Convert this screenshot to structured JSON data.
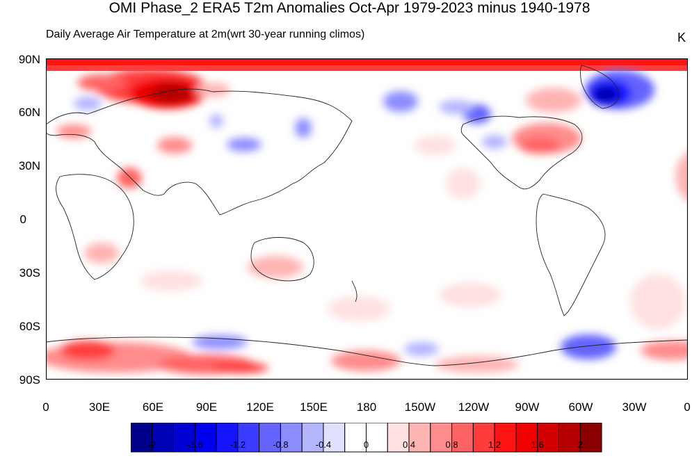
{
  "title": "OMI Phase_2 ERA5 T2m Anomalies Oct-Apr 1979-2023 minus 1940-1978",
  "subtitle": "Daily Average Air Temperature at 2m(wrt 30-year running climos)",
  "units": "K",
  "y_ticks": [
    "90N",
    "60N",
    "30N",
    "0",
    "30S",
    "60S",
    "90S"
  ],
  "x_ticks": [
    "0",
    "30E",
    "60E",
    "90E",
    "120E",
    "150E",
    "180",
    "150W",
    "120W",
    "90W",
    "60W",
    "30W",
    "0"
  ],
  "colorbar": {
    "colors": [
      "#00008a",
      "#0000b4",
      "#0000d2",
      "#0000f0",
      "#1414ff",
      "#3c3cff",
      "#6464ff",
      "#8c8cff",
      "#b4b4ff",
      "#e1e1ff",
      "#ffffff",
      "#ffffff",
      "#ffe1e1",
      "#ffb4b4",
      "#ff8c8c",
      "#ff6464",
      "#ff3c3c",
      "#ff1414",
      "#f00000",
      "#d20000",
      "#b40000",
      "#8a0000"
    ],
    "labels": [
      "-2",
      "-1.6",
      "-1.2",
      "-0.8",
      "-0.4",
      "0",
      "0.4",
      "0.8",
      "1.2",
      "1.6",
      "2"
    ]
  }
}
